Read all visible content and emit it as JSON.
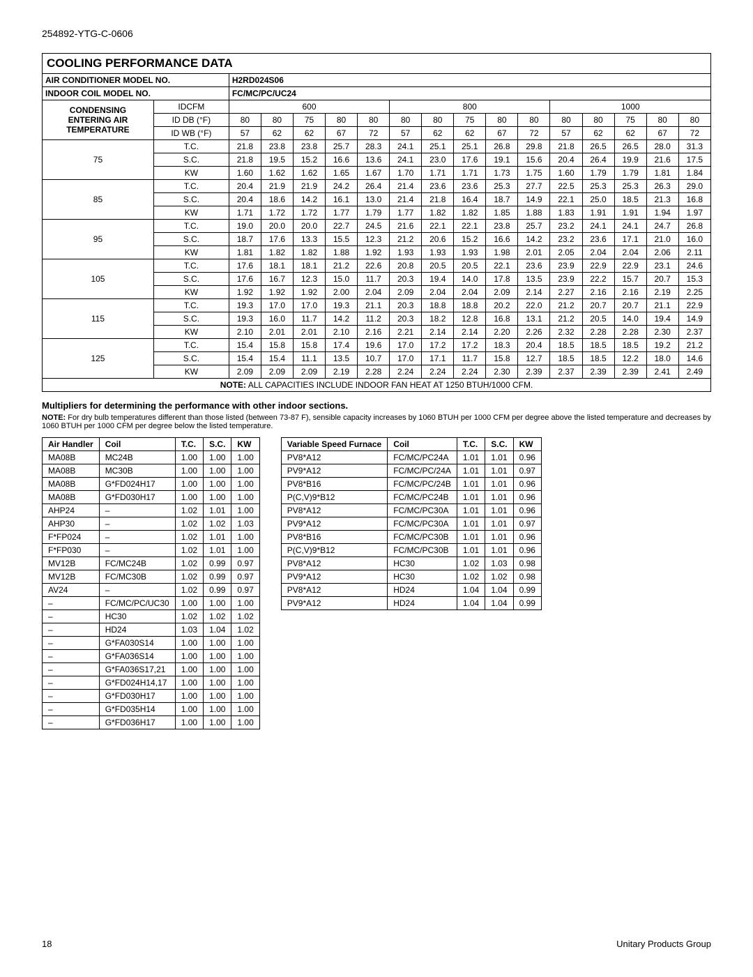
{
  "doc_code": "254892-YTG-C-0606",
  "title": "COOLING PERFORMANCE DATA",
  "row_model_label": "AIR CONDITIONER MODEL NO.",
  "row_model_value": "H2RD024S06",
  "row_coil_label": "INDOOR COIL MODEL NO.",
  "row_coil_value": "FC/MC/PC/UC24",
  "cond_header": "CONDENSING ENTERING AIR TEMPERATURE",
  "idcfm_label": "IDCFM",
  "cfm_groups": [
    "600",
    "800",
    "1000"
  ],
  "iddb_label": "ID DB (°F)",
  "idwb_label": "ID WB (°F)",
  "db_vals": [
    "80",
    "80",
    "75",
    "80",
    "80",
    "80",
    "80",
    "75",
    "80",
    "80",
    "80",
    "80",
    "75",
    "80",
    "80"
  ],
  "wb_vals": [
    "57",
    "62",
    "62",
    "67",
    "72",
    "57",
    "62",
    "62",
    "67",
    "72",
    "57",
    "62",
    "62",
    "67",
    "72"
  ],
  "metric_labels": [
    "T.C.",
    "S.C.",
    "KW"
  ],
  "perf_temps": [
    "75",
    "85",
    "95",
    "105",
    "115",
    "125"
  ],
  "perf_rows": {
    "75": [
      [
        "21.8",
        "23.8",
        "23.8",
        "25.7",
        "28.3",
        "24.1",
        "25.1",
        "25.1",
        "26.8",
        "29.8",
        "21.8",
        "26.5",
        "26.5",
        "28.0",
        "31.3"
      ],
      [
        "21.8",
        "19.5",
        "15.2",
        "16.6",
        "13.6",
        "24.1",
        "23.0",
        "17.6",
        "19.1",
        "15.6",
        "20.4",
        "26.4",
        "19.9",
        "21.6",
        "17.5"
      ],
      [
        "1.60",
        "1.62",
        "1.62",
        "1.65",
        "1.67",
        "1.70",
        "1.71",
        "1.71",
        "1.73",
        "1.75",
        "1.60",
        "1.79",
        "1.79",
        "1.81",
        "1.84"
      ]
    ],
    "85": [
      [
        "20.4",
        "21.9",
        "21.9",
        "24.2",
        "26.4",
        "21.4",
        "23.6",
        "23.6",
        "25.3",
        "27.7",
        "22.5",
        "25.3",
        "25.3",
        "26.3",
        "29.0"
      ],
      [
        "20.4",
        "18.6",
        "14.2",
        "16.1",
        "13.0",
        "21.4",
        "21.8",
        "16.4",
        "18.7",
        "14.9",
        "22.1",
        "25.0",
        "18.5",
        "21.3",
        "16.8"
      ],
      [
        "1.71",
        "1.72",
        "1.72",
        "1.77",
        "1.79",
        "1.77",
        "1.82",
        "1.82",
        "1.85",
        "1.88",
        "1.83",
        "1.91",
        "1.91",
        "1.94",
        "1.97"
      ]
    ],
    "95": [
      [
        "19.0",
        "20.0",
        "20.0",
        "22.7",
        "24.5",
        "21.6",
        "22.1",
        "22.1",
        "23.8",
        "25.7",
        "23.2",
        "24.1",
        "24.1",
        "24.7",
        "26.8"
      ],
      [
        "18.7",
        "17.6",
        "13.3",
        "15.5",
        "12.3",
        "21.2",
        "20.6",
        "15.2",
        "16.6",
        "14.2",
        "23.2",
        "23.6",
        "17.1",
        "21.0",
        "16.0"
      ],
      [
        "1.81",
        "1.82",
        "1.82",
        "1.88",
        "1.92",
        "1.93",
        "1.93",
        "1.93",
        "1.98",
        "2.01",
        "2.05",
        "2.04",
        "2.04",
        "2.06",
        "2.11"
      ]
    ],
    "105": [
      [
        "17.6",
        "18.1",
        "18.1",
        "21.2",
        "22.6",
        "20.8",
        "20.5",
        "20.5",
        "22.1",
        "23.6",
        "23.9",
        "22.9",
        "22.9",
        "23.1",
        "24.6"
      ],
      [
        "17.6",
        "16.7",
        "12.3",
        "15.0",
        "11.7",
        "20.3",
        "19.4",
        "14.0",
        "17.8",
        "13.5",
        "23.9",
        "22.2",
        "15.7",
        "20.7",
        "15.3"
      ],
      [
        "1.92",
        "1.92",
        "1.92",
        "2.00",
        "2.04",
        "2.09",
        "2.04",
        "2.04",
        "2.09",
        "2.14",
        "2.27",
        "2.16",
        "2.16",
        "2.19",
        "2.25"
      ]
    ],
    "115": [
      [
        "19.3",
        "17.0",
        "17.0",
        "19.3",
        "21.1",
        "20.3",
        "18.8",
        "18.8",
        "20.2",
        "22.0",
        "21.2",
        "20.7",
        "20.7",
        "21.1",
        "22.9"
      ],
      [
        "19.3",
        "16.0",
        "11.7",
        "14.2",
        "11.2",
        "20.3",
        "18.2",
        "12.8",
        "16.8",
        "13.1",
        "21.2",
        "20.5",
        "14.0",
        "19.4",
        "14.9"
      ],
      [
        "2.10",
        "2.01",
        "2.01",
        "2.10",
        "2.16",
        "2.21",
        "2.14",
        "2.14",
        "2.20",
        "2.26",
        "2.32",
        "2.28",
        "2.28",
        "2.30",
        "2.37"
      ]
    ],
    "125": [
      [
        "15.4",
        "15.8",
        "15.8",
        "17.4",
        "19.6",
        "17.0",
        "17.2",
        "17.2",
        "18.3",
        "20.4",
        "18.5",
        "18.5",
        "18.5",
        "19.2",
        "21.2"
      ],
      [
        "15.4",
        "15.4",
        "11.1",
        "13.5",
        "10.7",
        "17.0",
        "17.1",
        "11.7",
        "15.8",
        "12.7",
        "18.5",
        "18.5",
        "12.2",
        "18.0",
        "14.6"
      ],
      [
        "2.09",
        "2.09",
        "2.09",
        "2.19",
        "2.28",
        "2.24",
        "2.24",
        "2.24",
        "2.30",
        "2.39",
        "2.37",
        "2.39",
        "2.39",
        "2.41",
        "2.49"
      ]
    ]
  },
  "perf_note_label": "NOTE:",
  "perf_note_text": " ALL CAPACITIES INCLUDE INDOOR FAN HEAT AT 1250 BTUH/1000 CFM.",
  "mult_heading": "Multipliers for determining the performance with other indoor sections.",
  "mult_note_label": "NOTE:",
  "mult_note_text": " For dry bulb temperatures different than those listed (between 73-87 F), sensible capacity increases by 1060 BTUH per 1000 CFM per degree above the listed temperature and decreases by 1060 BTUH per 1000 CFM per degree below the listed temperature.",
  "left_headers": [
    "Air Handler",
    "Coil",
    "T.C.",
    "S.C.",
    "KW"
  ],
  "left_rows": [
    [
      "MA08B",
      "MC24B",
      "1.00",
      "1.00",
      "1.00"
    ],
    [
      "MA08B",
      "MC30B",
      "1.00",
      "1.00",
      "1.00"
    ],
    [
      "MA08B",
      "G*FD024H17",
      "1.00",
      "1.00",
      "1.00"
    ],
    [
      "MA08B",
      "G*FD030H17",
      "1.00",
      "1.00",
      "1.00"
    ],
    [
      "AHP24",
      "–",
      "1.02",
      "1.01",
      "1.00"
    ],
    [
      "AHP30",
      "–",
      "1.02",
      "1.02",
      "1.03"
    ],
    [
      "F*FP024",
      "–",
      "1.02",
      "1.01",
      "1.00"
    ],
    [
      "F*FP030",
      "–",
      "1.02",
      "1.01",
      "1.00"
    ],
    [
      "MV12B",
      "FC/MC24B",
      "1.02",
      "0.99",
      "0.97"
    ],
    [
      "MV12B",
      "FC/MC30B",
      "1.02",
      "0.99",
      "0.97"
    ],
    [
      "AV24",
      "–",
      "1.02",
      "0.99",
      "0.97"
    ],
    [
      "–",
      "FC/MC/PC/UC30",
      "1.00",
      "1.00",
      "1.00"
    ],
    [
      "–",
      "HC30",
      "1.02",
      "1.02",
      "1.02"
    ],
    [
      "–",
      "HD24",
      "1.03",
      "1.04",
      "1.02"
    ],
    [
      "–",
      "G*FA030S14",
      "1.00",
      "1.00",
      "1.00"
    ],
    [
      "–",
      "G*FA036S14",
      "1.00",
      "1.00",
      "1.00"
    ],
    [
      "–",
      "G*FA036S17,21",
      "1.00",
      "1.00",
      "1.00"
    ],
    [
      "–",
      "G*FD024H14,17",
      "1.00",
      "1.00",
      "1.00"
    ],
    [
      "–",
      "G*FD030H17",
      "1.00",
      "1.00",
      "1.00"
    ],
    [
      "–",
      "G*FD035H14",
      "1.00",
      "1.00",
      "1.00"
    ],
    [
      "–",
      "G*FD036H17",
      "1.00",
      "1.00",
      "1.00"
    ]
  ],
  "right_headers": [
    "Variable Speed Furnace",
    "Coil",
    "T.C.",
    "S.C.",
    "KW"
  ],
  "right_rows": [
    [
      "PV8*A12",
      "FC/MC/PC24A",
      "1.01",
      "1.01",
      "0.96"
    ],
    [
      "PV9*A12",
      "FC/MC/PC/24A",
      "1.01",
      "1.01",
      "0.97"
    ],
    [
      "PV8*B16",
      "FC/MC/PC/24B",
      "1.01",
      "1.01",
      "0.96"
    ],
    [
      "P(C,V)9*B12",
      "FC/MC/PC24B",
      "1.01",
      "1.01",
      "0.96"
    ],
    [
      "PV8*A12",
      "FC/MC/PC30A",
      "1.01",
      "1.01",
      "0.96"
    ],
    [
      "PV9*A12",
      "FC/MC/PC30A",
      "1.01",
      "1.01",
      "0.97"
    ],
    [
      "PV8*B16",
      "FC/MC/PC30B",
      "1.01",
      "1.01",
      "0.96"
    ],
    [
      "P(C,V)9*B12",
      "FC/MC/PC30B",
      "1.01",
      "1.01",
      "0.96"
    ],
    [
      "PV8*A12",
      "HC30",
      "1.02",
      "1.03",
      "0.98"
    ],
    [
      "PV9*A12",
      "HC30",
      "1.02",
      "1.02",
      "0.98"
    ],
    [
      "PV8*A12",
      "HD24",
      "1.04",
      "1.04",
      "0.99"
    ],
    [
      "PV9*A12",
      "HD24",
      "1.04",
      "1.04",
      "0.99"
    ]
  ],
  "page_num": "18",
  "footer_right": "Unitary Products Group"
}
